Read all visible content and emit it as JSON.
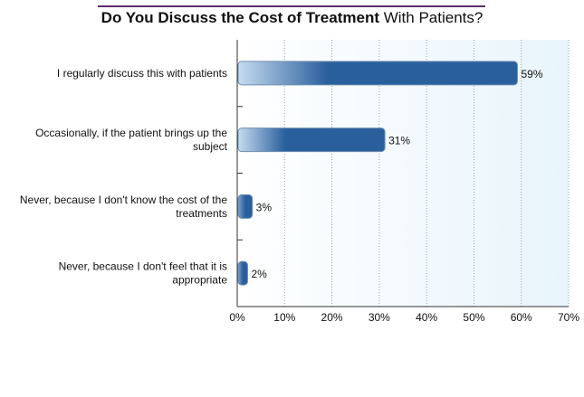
{
  "chart_data": {
    "type": "bar",
    "orientation": "horizontal",
    "title_bold": "Do You Discuss the Cost of Treatment",
    "title_regular": "With Patients?",
    "categories": [
      [
        "I regularly discuss this with patients"
      ],
      [
        "Occasionally, if the patient brings up the",
        "subject"
      ],
      [
        "Never, because I don't know the cost of the",
        "treatments"
      ],
      [
        "Never, because I don't feel that it is",
        "appropriate"
      ]
    ],
    "values": [
      59,
      31,
      3,
      2
    ],
    "value_labels": [
      "59%",
      "31%",
      "3%",
      "2%"
    ],
    "xlim": [
      0,
      70
    ],
    "xticks": [
      0,
      10,
      20,
      30,
      40,
      50,
      60,
      70
    ],
    "xtick_labels": [
      "0%",
      "10%",
      "20%",
      "30%",
      "40%",
      "50%",
      "60%",
      "70%"
    ],
    "grid": "vertical-dotted",
    "colors": {
      "bar_dark": "#2a5f9e",
      "bar_light": "#c6dcef",
      "plot_bg": "#eef7fd",
      "title_rule": "#5a2d6b"
    }
  }
}
